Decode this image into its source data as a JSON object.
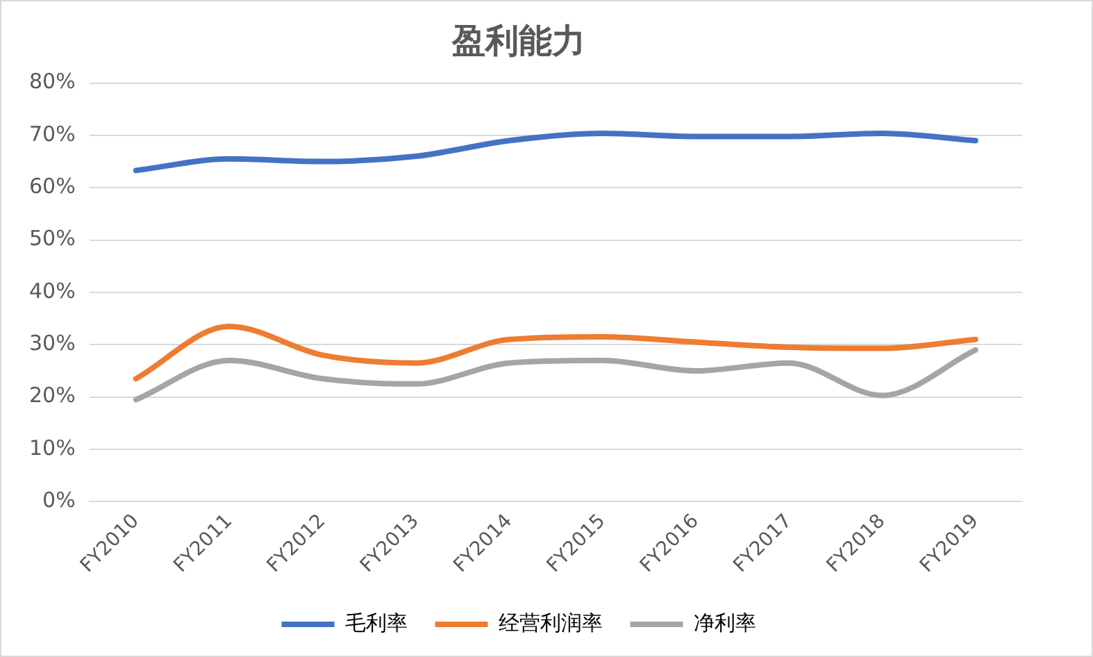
{
  "chart_data": {
    "type": "line",
    "title": "盈利能力",
    "categories": [
      "FY2010",
      "FY2011",
      "FY2012",
      "FY2013",
      "FY2014",
      "FY2015",
      "FY2016",
      "FY2017",
      "FY2018",
      "FY2019"
    ],
    "series": [
      {
        "name": "毛利率",
        "color": "#4472c4",
        "values": [
          63.3,
          65.5,
          65,
          66,
          69,
          70.4,
          69.8,
          69.8,
          70.4,
          69
        ]
      },
      {
        "name": "经营利润率",
        "color": "#ed7d31",
        "values": [
          23.5,
          33.5,
          28,
          26.5,
          31,
          31.5,
          30.5,
          29.5,
          29.3,
          31
        ]
      },
      {
        "name": "净利率",
        "color": "#a5a5a5",
        "values": [
          19.5,
          27,
          23.5,
          22.5,
          26.5,
          27,
          25,
          26.5,
          20.3,
          29
        ]
      }
    ],
    "ylim": [
      0,
      80
    ],
    "yticks": [
      {
        "value": 0,
        "label": "0%"
      },
      {
        "value": 10,
        "label": "10%"
      },
      {
        "value": 20,
        "label": "20%"
      },
      {
        "value": 30,
        "label": "30%"
      },
      {
        "value": 40,
        "label": "40%"
      },
      {
        "value": 50,
        "label": "50%"
      },
      {
        "value": 60,
        "label": "60%"
      },
      {
        "value": 70,
        "label": "70%"
      },
      {
        "value": 80,
        "label": "80%"
      }
    ],
    "grid": "y",
    "legend": "bottom",
    "marker": "none",
    "line_style": "solid"
  }
}
